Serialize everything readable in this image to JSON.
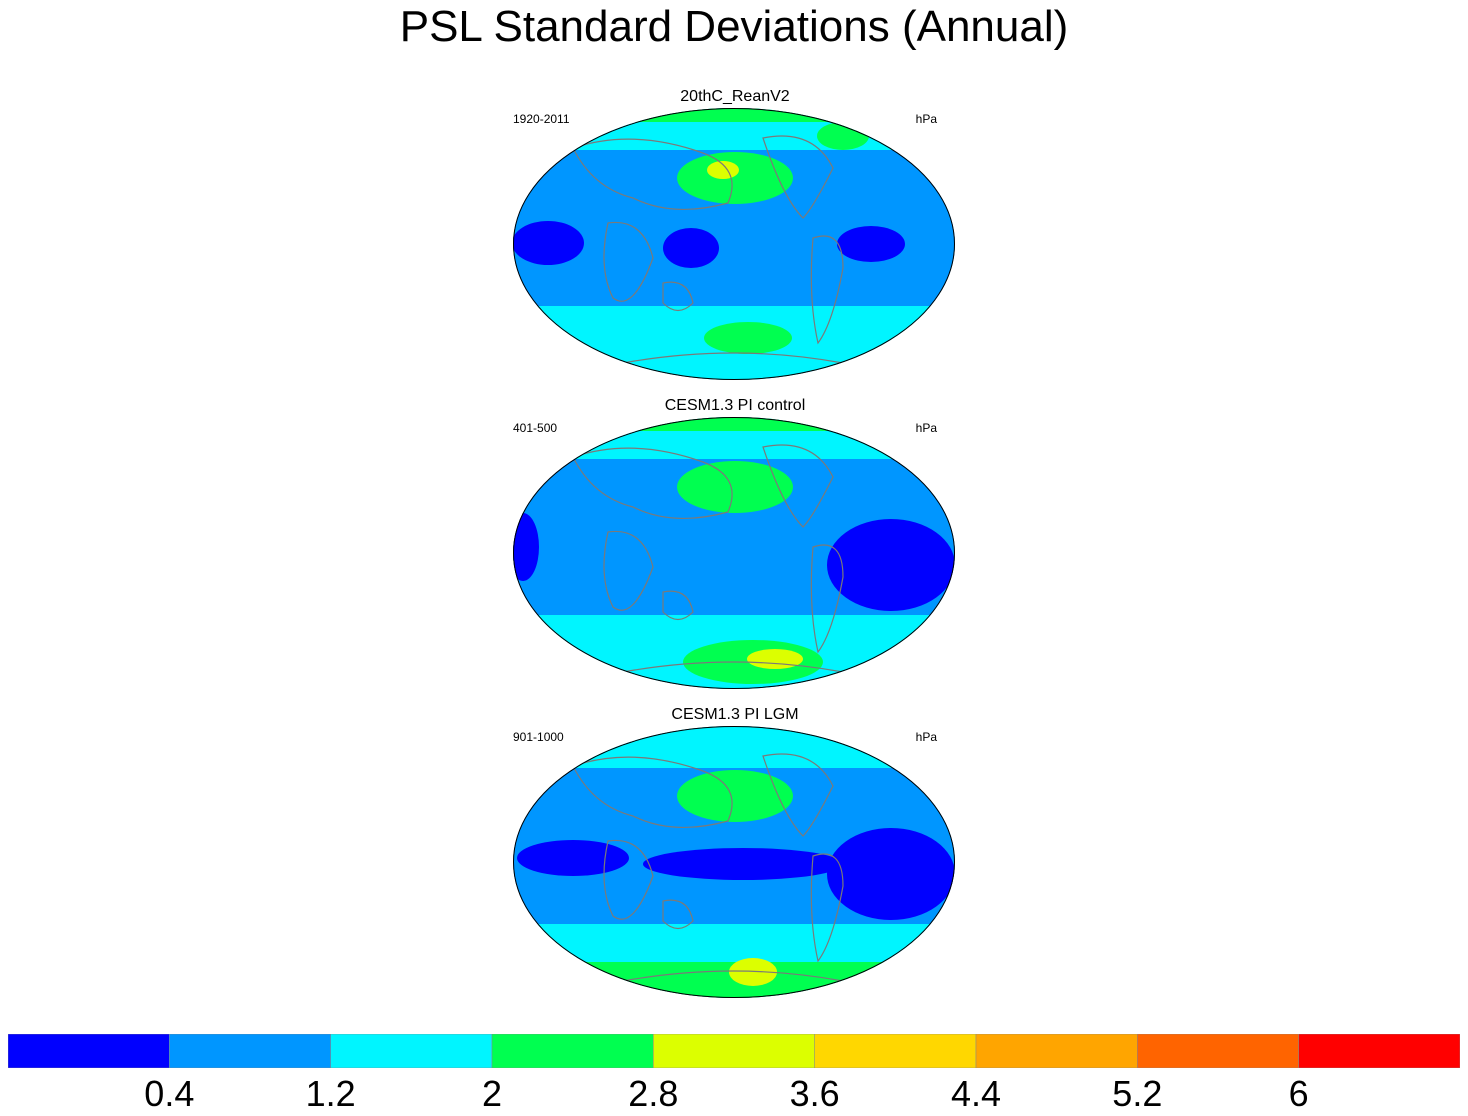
{
  "title": "PSL Standard Deviations (Annual)",
  "chart_data": {
    "type": "heatmap",
    "title": "PSL Standard Deviations (Annual)",
    "projection": "Robinson",
    "panels": [
      {
        "title": "20thC_ReanV2",
        "left_label": "1920-2011",
        "right_label": "hPa",
        "regions": [
          {
            "area": "global background",
            "bin": 1
          },
          {
            "area": "subpolar north",
            "bin": 2
          },
          {
            "area": "arctic",
            "bin": 3
          },
          {
            "area": "north pacific",
            "bin": 3
          },
          {
            "area": "north pacific center",
            "bin": 4
          },
          {
            "area": "greenland",
            "bin": 3
          },
          {
            "area": "southern ocean",
            "bin": 2
          },
          {
            "area": "south pacific high lat",
            "bin": 3
          },
          {
            "area": "indian ocean / africa tropics",
            "bin": 0
          },
          {
            "area": "tropical pacific",
            "bin": 0
          },
          {
            "area": "tropical atlantic",
            "bin": 0
          }
        ]
      },
      {
        "title": "CESM1.3 PI control",
        "left_label": "401-500",
        "right_label": "hPa",
        "regions": [
          {
            "area": "global background",
            "bin": 1
          },
          {
            "area": "subpolar north",
            "bin": 2
          },
          {
            "area": "arctic",
            "bin": 3
          },
          {
            "area": "north pacific",
            "bin": 3
          },
          {
            "area": "north pacific center",
            "bin": 3
          },
          {
            "area": "southern ocean",
            "bin": 2
          },
          {
            "area": "amundsen sea",
            "bin": 3
          },
          {
            "area": "amundsen sea center",
            "bin": 4
          },
          {
            "area": "tropical atlantic / south america",
            "bin": 0
          },
          {
            "area": "africa west coast",
            "bin": 0
          }
        ]
      },
      {
        "title": "CESM1.3 PI LGM",
        "left_label": "901-1000",
        "right_label": "hPa",
        "regions": [
          {
            "area": "global background",
            "bin": 1
          },
          {
            "area": "subpolar north",
            "bin": 2
          },
          {
            "area": "north pacific",
            "bin": 3
          },
          {
            "area": "southern ocean",
            "bin": 2
          },
          {
            "area": "antarctic margin",
            "bin": 3
          },
          {
            "area": "ross sea center",
            "bin": 4
          },
          {
            "area": "tropical indian / maritime continent",
            "bin": 0
          },
          {
            "area": "tropical pacific band",
            "bin": 0
          },
          {
            "area": "tropical atlantic / south america",
            "bin": 0
          }
        ]
      }
    ],
    "colorbar": {
      "levels": [
        "0.4",
        "1.2",
        "2",
        "2.8",
        "3.6",
        "4.4",
        "5.2",
        "6"
      ],
      "colors": [
        "#0000ff",
        "#0096ff",
        "#00f5ff",
        "#00ff50",
        "#dcff00",
        "#ffd700",
        "#ffa500",
        "#ff6400",
        "#ff0000"
      ]
    }
  }
}
